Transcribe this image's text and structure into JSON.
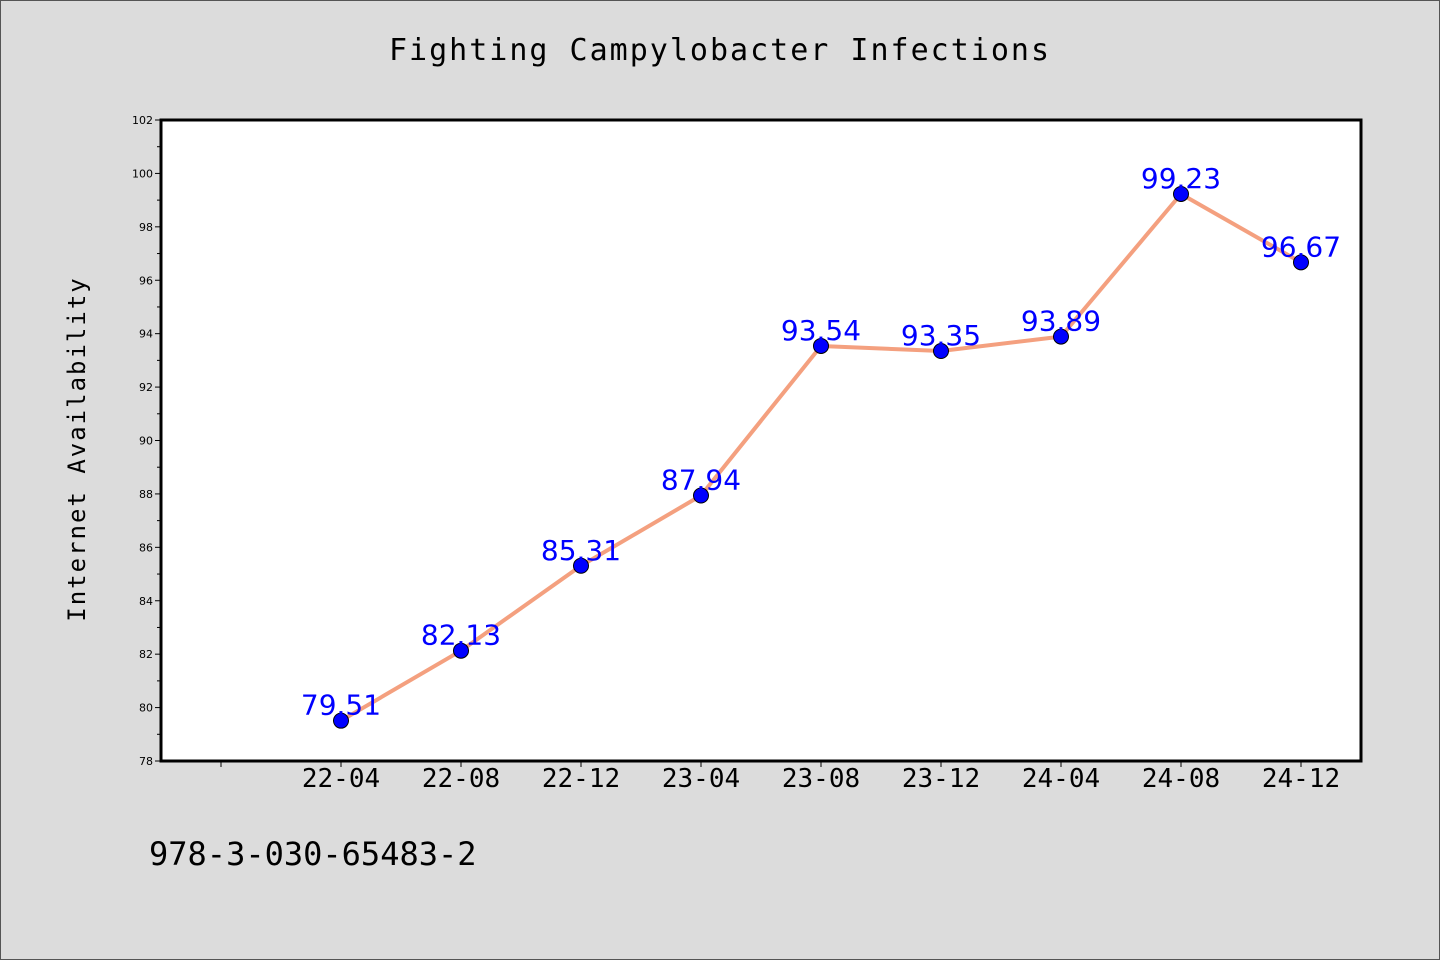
{
  "chart_data": {
    "type": "line",
    "title": "Fighting Campylobacter Infections",
    "xlabel": "",
    "ylabel": "Internet Availability",
    "categories": [
      "22-04",
      "22-08",
      "22-12",
      "23-04",
      "23-08",
      "23-12",
      "24-04",
      "24-08",
      "24-12"
    ],
    "values": [
      79.51,
      82.13,
      85.31,
      87.94,
      93.54,
      93.35,
      93.89,
      99.23,
      96.67
    ],
    "data_labels": [
      "79.51",
      "82.13",
      "85.31",
      "87.94",
      "93.54",
      "93.35",
      "93.89",
      "99.23",
      "96.67"
    ],
    "ylim": [
      78,
      102
    ],
    "yticks": [
      78,
      80,
      82,
      84,
      86,
      88,
      90,
      92,
      94,
      96,
      98,
      100,
      102
    ],
    "grid": false,
    "legend": "none",
    "line_color": "#f4a07f",
    "marker_color": "#0000ff",
    "label_color": "#0000ff"
  },
  "footer": {
    "id_text": "978-3-030-65483-2"
  }
}
